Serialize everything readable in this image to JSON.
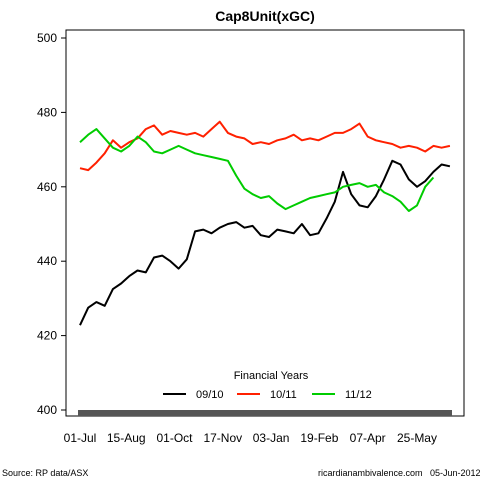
{
  "chart_data": {
    "type": "line",
    "title": "Cap8Unit(xGC)",
    "xlabel": "",
    "ylabel": "",
    "ylim": [
      400,
      500
    ],
    "yticks": [
      400,
      420,
      440,
      460,
      480,
      500
    ],
    "x_tick_labels": [
      "01-Jul",
      "15-Aug",
      "01-Oct",
      "17-Nov",
      "03-Jan",
      "19-Feb",
      "07-Apr",
      "25-May"
    ],
    "x_tick_days": [
      0,
      45,
      92,
      139,
      186,
      233,
      280,
      328
    ],
    "x_range_days": [
      0,
      365
    ],
    "legend": {
      "title": "Financial Years",
      "placement": "bottom-center"
    },
    "series": [
      {
        "name": "09/10",
        "color": "#000000",
        "days": [
          0,
          8,
          16,
          24,
          32,
          40,
          48,
          56,
          64,
          72,
          80,
          88,
          96,
          104,
          112,
          120,
          128,
          136,
          144,
          152,
          160,
          168,
          176,
          184,
          192,
          200,
          208,
          216,
          224,
          232,
          240,
          248,
          256,
          264,
          272,
          280,
          288,
          296,
          304,
          312,
          320,
          328,
          336,
          344,
          352,
          360
        ],
        "values": [
          422.8,
          427.5,
          429.0,
          428.0,
          432.5,
          434.0,
          436.0,
          437.5,
          437.0,
          441.0,
          441.5,
          440.0,
          438.0,
          440.5,
          448.0,
          448.5,
          447.5,
          449.0,
          450.0,
          450.5,
          449.0,
          449.5,
          447.0,
          446.5,
          448.5,
          448.0,
          447.5,
          450.0,
          447.0,
          447.5,
          451.5,
          456.0,
          464.0,
          458.0,
          455.0,
          454.5,
          457.5,
          462.0,
          467.0,
          466.0,
          462.0,
          460.0,
          461.5,
          464.0,
          466.0,
          465.5
        ]
      },
      {
        "name": "10/11",
        "color": "#ff2000",
        "days": [
          0,
          8,
          16,
          24,
          32,
          40,
          48,
          56,
          64,
          72,
          80,
          88,
          96,
          104,
          112,
          120,
          128,
          136,
          144,
          152,
          160,
          168,
          176,
          184,
          192,
          200,
          208,
          216,
          224,
          232,
          240,
          248,
          256,
          264,
          272,
          280,
          288,
          296,
          304,
          312,
          320,
          328,
          336,
          344,
          352,
          360
        ],
        "values": [
          465.0,
          464.5,
          466.5,
          469.0,
          472.5,
          470.5,
          472.0,
          473.0,
          475.5,
          476.5,
          474.0,
          475.0,
          474.5,
          474.0,
          474.5,
          473.5,
          475.5,
          477.5,
          474.5,
          473.5,
          473.0,
          471.5,
          472.0,
          471.5,
          472.5,
          473.0,
          474.0,
          472.5,
          473.0,
          472.5,
          473.5,
          474.5,
          474.5,
          475.5,
          477.0,
          473.5,
          472.5,
          472.0,
          471.5,
          470.5,
          471.0,
          470.5,
          469.5,
          471.0,
          470.5,
          471.0
        ]
      },
      {
        "name": "11/12",
        "color": "#00cc00",
        "days": [
          0,
          8,
          16,
          24,
          32,
          40,
          48,
          56,
          64,
          72,
          80,
          88,
          96,
          104,
          112,
          120,
          128,
          136,
          144,
          152,
          160,
          168,
          176,
          184,
          192,
          200,
          208,
          216,
          224,
          232,
          240,
          248,
          256,
          264,
          272,
          280,
          288,
          296,
          304,
          312,
          320,
          328,
          336,
          344
        ],
        "values": [
          472.0,
          474.0,
          475.5,
          473.0,
          470.5,
          469.5,
          471.0,
          473.5,
          472.0,
          469.5,
          469.0,
          470.0,
          471.0,
          470.0,
          469.0,
          468.5,
          468.0,
          467.5,
          467.0,
          463.0,
          459.5,
          458.0,
          457.0,
          457.5,
          455.5,
          454.0,
          455.0,
          456.0,
          457.0,
          457.5,
          458.0,
          458.5,
          460.0,
          460.5,
          461.0,
          460.0,
          460.5,
          458.5,
          457.5,
          456.0,
          453.5,
          455.0,
          460.0,
          462.5
        ]
      }
    ]
  },
  "footer": {
    "source": "Source: RP data/ASX",
    "site": "ricardianambivalence.com",
    "date": "05-Jun-2012"
  }
}
